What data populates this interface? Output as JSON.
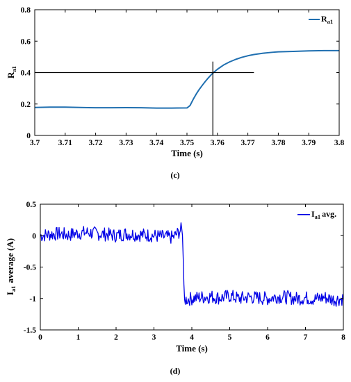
{
  "chart_data": [
    {
      "type": "line",
      "panel_label": "(c)",
      "xlabel": "Time (s)",
      "ylabel": {
        "main": "R",
        "sub": "a1"
      },
      "xlim": [
        3.7,
        3.8
      ],
      "ylim": [
        0,
        0.8
      ],
      "xticks": [
        3.7,
        3.71,
        3.72,
        3.73,
        3.74,
        3.75,
        3.76,
        3.77,
        3.78,
        3.79,
        3.8
      ],
      "xtick_labels": [
        "3.7",
        "3.71",
        "3.72",
        "3.73",
        "3.74",
        "3.75",
        "3.76",
        "3.77",
        "3.78",
        "3.79",
        "3.8"
      ],
      "yticks": [
        0,
        0.2,
        0.4,
        0.6,
        0.8
      ],
      "ytick_labels": [
        "0",
        "0.2",
        "0.4",
        "0.6",
        "0.8"
      ],
      "grid": false,
      "legend": {
        "position": "top-right",
        "main": "R",
        "sub": "a1"
      },
      "series": [
        {
          "color": "#1f6fb0",
          "x": [
            3.7,
            3.705,
            3.71,
            3.715,
            3.72,
            3.725,
            3.73,
            3.735,
            3.74,
            3.745,
            3.75,
            3.751,
            3.752,
            3.753,
            3.754,
            3.755,
            3.756,
            3.757,
            3.758,
            3.759,
            3.76,
            3.762,
            3.764,
            3.766,
            3.768,
            3.77,
            3.772,
            3.775,
            3.778,
            3.78,
            3.785,
            3.79,
            3.795,
            3.8
          ],
          "y": [
            0.178,
            0.18,
            0.18,
            0.178,
            0.176,
            0.176,
            0.177,
            0.176,
            0.174,
            0.174,
            0.175,
            0.19,
            0.228,
            0.262,
            0.292,
            0.318,
            0.343,
            0.366,
            0.387,
            0.405,
            0.421,
            0.448,
            0.468,
            0.484,
            0.497,
            0.507,
            0.515,
            0.523,
            0.529,
            0.532,
            0.535,
            0.538,
            0.54,
            0.54
          ]
        }
      ],
      "crosshair": {
        "x": 3.7585,
        "y": 0.4,
        "h_from": 3.7,
        "h_to": 3.772,
        "v_from": 0,
        "v_to": 0.47,
        "color": "#000000"
      }
    },
    {
      "type": "line",
      "panel_label": "(d)",
      "xlabel": "Time (s)",
      "ylabel": {
        "main": "I",
        "sub": "a1",
        "rest": "average (A)"
      },
      "xlim": [
        0,
        8
      ],
      "ylim": [
        -1.5,
        0.5
      ],
      "xticks": [
        0,
        1,
        2,
        3,
        4,
        5,
        6,
        7,
        8
      ],
      "xtick_labels": [
        "0",
        "1",
        "2",
        "3",
        "4",
        "5",
        "6",
        "7",
        "8"
      ],
      "yticks": [
        -1.5,
        -1,
        -0.5,
        0,
        0.5
      ],
      "ytick_labels": [
        "-1.5",
        "-1",
        "-0.5",
        "0",
        "0.5"
      ],
      "grid": false,
      "legend": {
        "position": "top-right",
        "main": "I",
        "sub": "a1",
        "rest": "avg."
      },
      "series": [
        {
          "color": "#0000e6",
          "x": [
            0,
            0.25,
            0.5,
            0.75,
            1.0,
            1.25,
            1.5,
            1.75,
            2.0,
            2.25,
            2.5,
            2.75,
            3.0,
            3.25,
            3.5,
            3.65,
            3.72,
            3.75,
            3.78,
            3.8,
            4.0,
            4.25,
            4.5,
            4.75,
            5.0,
            5.25,
            5.5,
            5.75,
            6.0,
            6.25,
            6.5,
            6.75,
            7.0,
            7.25,
            7.5,
            7.75,
            8.0
          ],
          "y": [
            0,
            0.02,
            0.03,
            0.01,
            0.04,
            0.05,
            0.03,
            0.02,
            0.0,
            0.03,
            0.02,
            0.01,
            0.0,
            -0.02,
            -0.03,
            0.05,
            0.1,
            0.05,
            -0.5,
            -1.02,
            -1.0,
            -0.98,
            -0.97,
            -0.99,
            -0.96,
            -1.0,
            -0.98,
            -0.99,
            -1.0,
            -0.97,
            -0.98,
            -1.0,
            -0.99,
            -1.01,
            -0.98,
            -1.02,
            -1.0
          ],
          "noise_amplitude": 0.11
        }
      ]
    }
  ]
}
